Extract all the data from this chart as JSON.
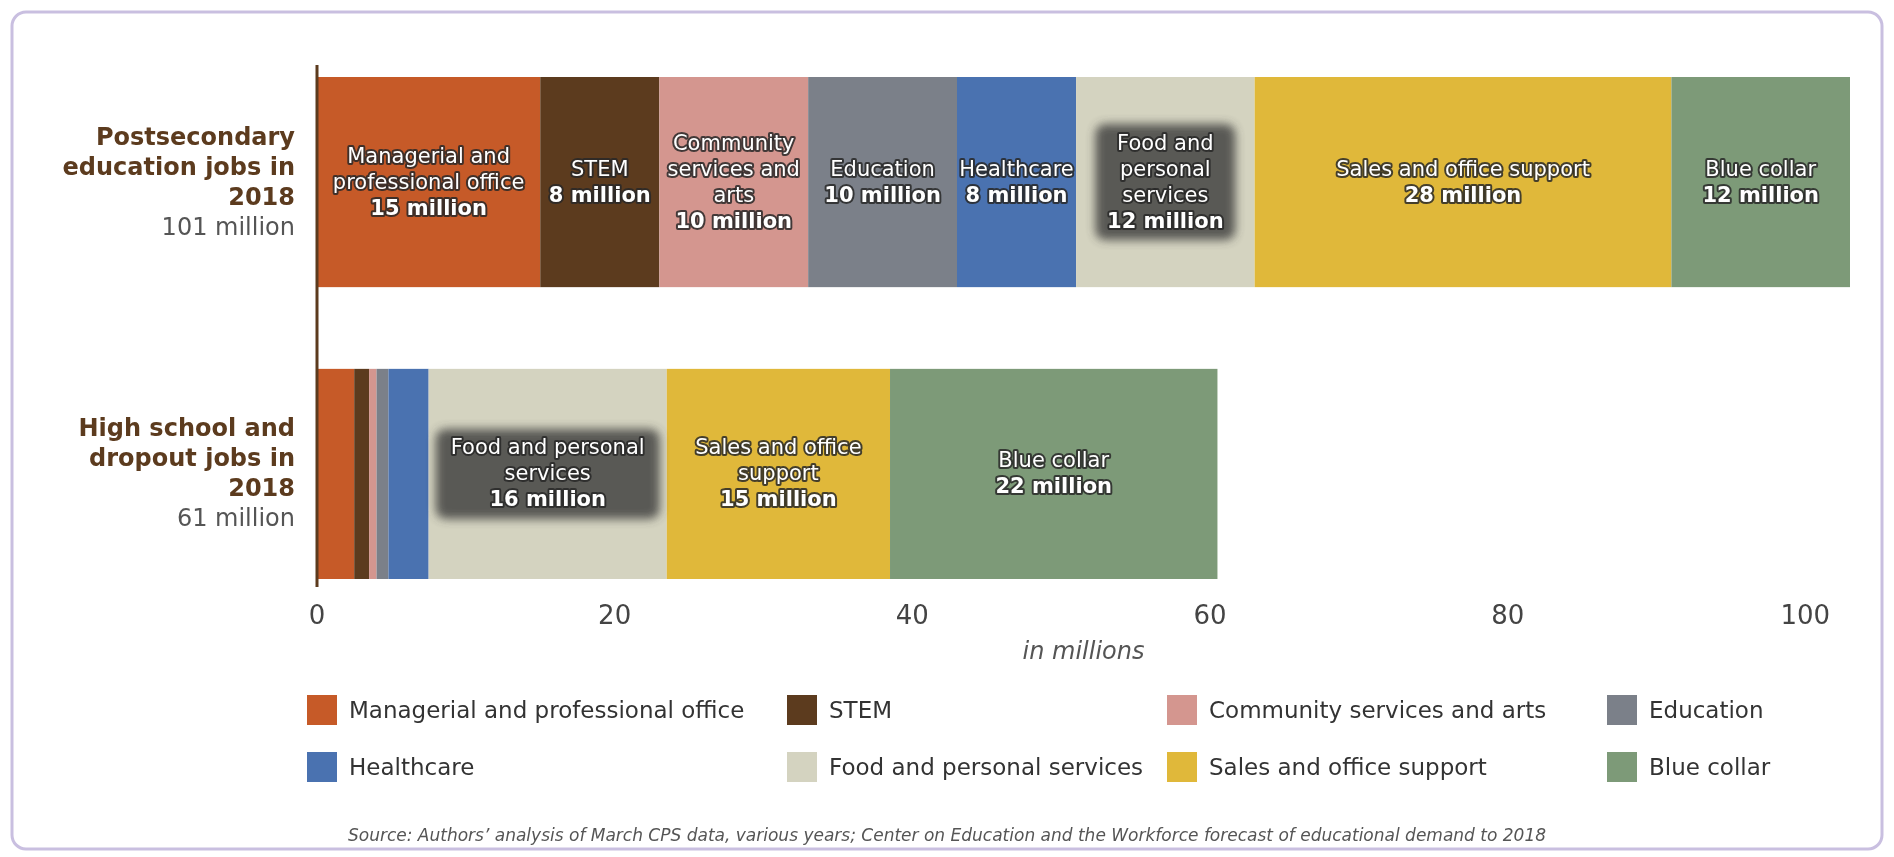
{
  "chart_data": {
    "type": "bar",
    "orientation": "horizontal",
    "stacked": true,
    "categories": [
      "Postsecondary education jobs in 2018",
      "High school and dropout jobs in 2018"
    ],
    "totals": [
      "101 million",
      "61 million"
    ],
    "series": [
      {
        "name": "Managerial and professional office",
        "color": "#c65a28",
        "values": [
          15,
          2.5
        ],
        "value_labels": [
          "15 million",
          null
        ]
      },
      {
        "name": "STEM",
        "color": "#5c3b1e",
        "values": [
          8,
          1
        ],
        "value_labels": [
          "8 million",
          null
        ]
      },
      {
        "name": "Community services and arts",
        "color": "#d4968f",
        "values": [
          10,
          0.5
        ],
        "value_labels": [
          "10 million",
          null
        ]
      },
      {
        "name": "Education",
        "color": "#7b8089",
        "values": [
          10,
          0.8
        ],
        "value_labels": [
          "10 million",
          null
        ]
      },
      {
        "name": "Healthcare",
        "color": "#4a72b0",
        "values": [
          8,
          2.7
        ],
        "value_labels": [
          "8 million",
          null
        ]
      },
      {
        "name": "Food and personal services",
        "color": "#d4d3c0",
        "values": [
          12,
          16
        ],
        "value_labels": [
          "12 million",
          "16 million"
        ]
      },
      {
        "name": "Sales and office support",
        "color": "#e0b83a",
        "values": [
          28,
          15
        ],
        "value_labels": [
          "28 million",
          "15 million"
        ]
      },
      {
        "name": "Blue collar",
        "color": "#7d9a78",
        "values": [
          12,
          22
        ],
        "value_labels": [
          "12 million",
          "22 million"
        ]
      }
    ],
    "xlim": [
      0,
      103
    ],
    "xticks": [
      0,
      20,
      40,
      60,
      80,
      100
    ],
    "xlabel": "in millions",
    "legend": "bottom",
    "grid": false,
    "annotations": [
      "Source: Authors’ analysis of March CPS data, various years; Center on Education and the Workforce forecast of educational demand to 2018"
    ]
  }
}
